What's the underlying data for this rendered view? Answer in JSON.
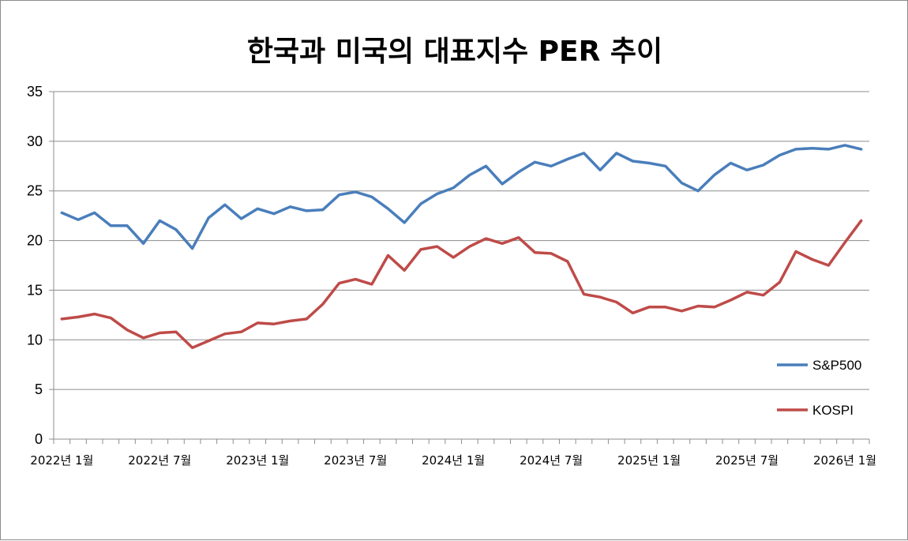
{
  "chart_data": {
    "type": "line",
    "title": "한국과 미국의 대표지수 PER 추이",
    "xlabel": "",
    "ylabel": "",
    "ylim": [
      0,
      35
    ],
    "yticks": [
      0,
      5,
      10,
      15,
      20,
      25,
      30,
      35
    ],
    "grid": true,
    "legend_position": "right",
    "x_tick_labels": [
      "2022년 1월",
      "2022년 7월",
      "2023년 1월",
      "2023년 7월",
      "2024년 1월",
      "2024년 7월",
      "2025년 1월",
      "2025년 7월",
      "2026년 1월"
    ],
    "x_tick_indices": [
      0,
      6,
      12,
      18,
      24,
      30,
      36,
      42,
      48
    ],
    "series": [
      {
        "name": "S&P500",
        "color": "#4a7ebb",
        "values": [
          22.8,
          22.1,
          22.8,
          21.5,
          21.5,
          19.7,
          22.0,
          21.1,
          19.2,
          22.3,
          23.6,
          22.2,
          23.2,
          22.7,
          23.4,
          23.0,
          23.1,
          24.6,
          24.9,
          24.4,
          23.2,
          21.8,
          23.7,
          24.7,
          25.3,
          26.6,
          27.5,
          25.7,
          26.9,
          27.9,
          27.5,
          28.2,
          28.8,
          27.1,
          28.8,
          28.0,
          27.8,
          27.5,
          25.8,
          25.0,
          26.6,
          27.8,
          27.1,
          27.6,
          28.6,
          29.2,
          29.3,
          29.2,
          29.6,
          29.2
        ]
      },
      {
        "name": "KOSPI",
        "color": "#be4b48",
        "values": [
          12.1,
          12.3,
          12.6,
          12.2,
          11.0,
          10.2,
          10.7,
          10.8,
          9.2,
          9.9,
          10.6,
          10.8,
          11.7,
          11.6,
          11.9,
          12.1,
          13.6,
          15.7,
          16.1,
          15.6,
          18.5,
          17.0,
          19.1,
          19.4,
          18.3,
          19.4,
          20.2,
          19.7,
          20.3,
          18.8,
          18.7,
          17.9,
          14.6,
          14.3,
          13.8,
          12.7,
          13.3,
          13.3,
          12.9,
          13.4,
          13.3,
          14.0,
          14.8,
          14.5,
          15.8,
          18.9,
          18.1,
          17.5,
          19.8,
          22.0
        ]
      }
    ]
  }
}
